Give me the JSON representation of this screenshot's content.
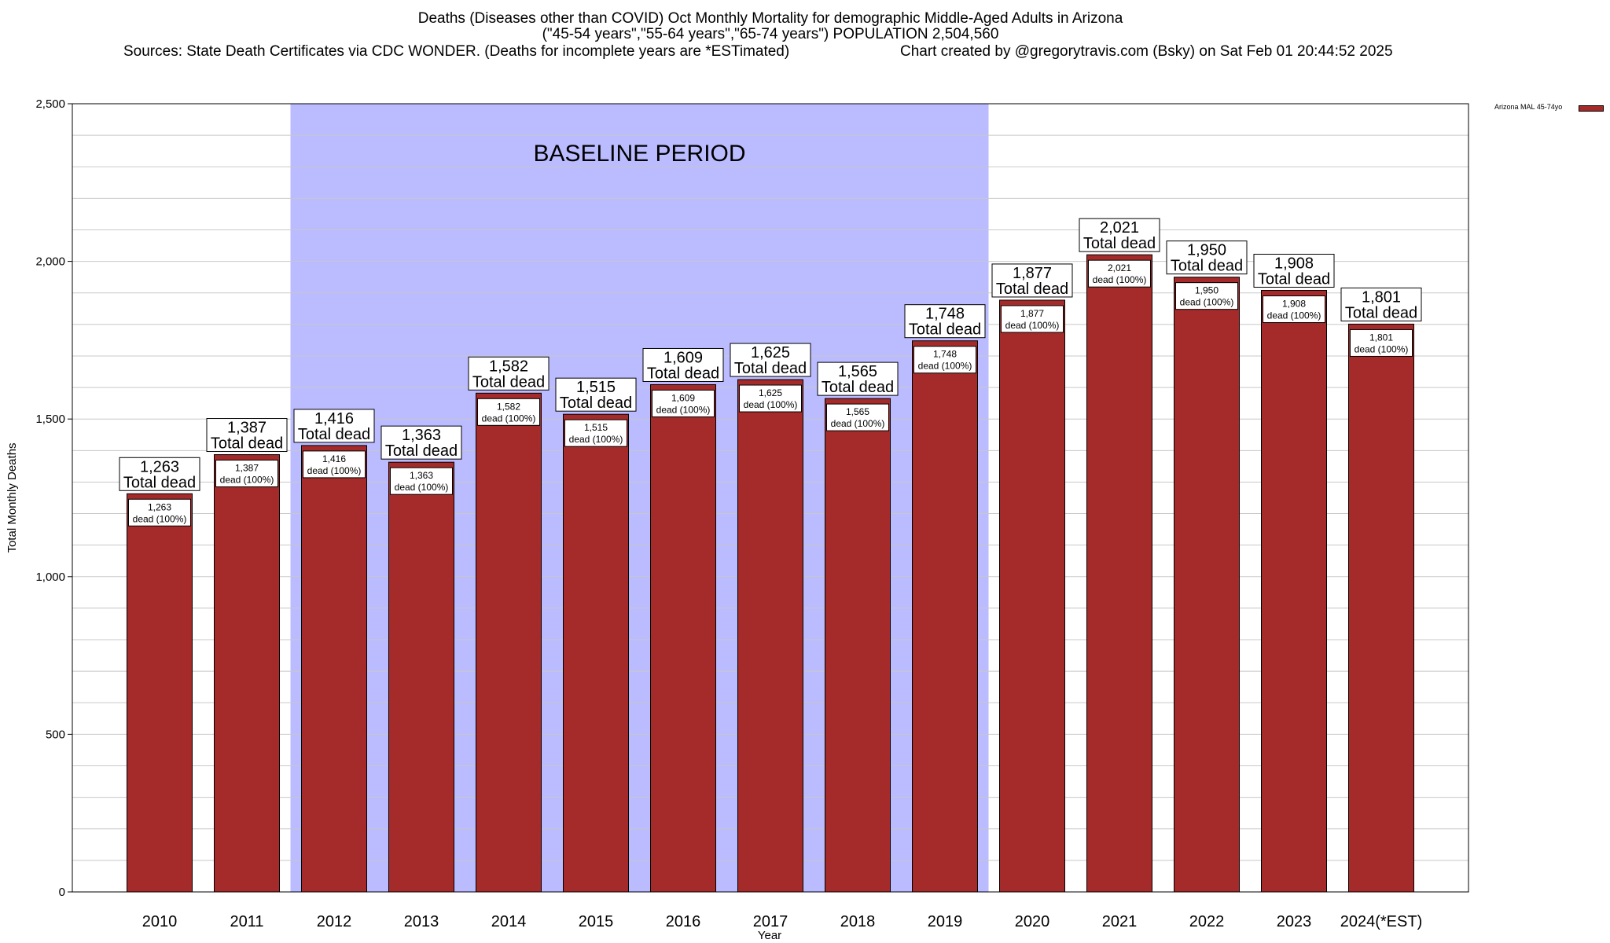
{
  "header": {
    "title_line1": "Deaths (Diseases other than COVID) Oct Monthly Mortality for demographic Middle-Aged Adults in Arizona",
    "title_line2": "(\"45-54 years\",\"55-64 years\",\"65-74 years\") POPULATION 2,504,560",
    "sources": "Sources: State Death Certificates via CDC WONDER. (Deaths for incomplete years are *ESTimated)",
    "credit": "Chart created by @gregorytravis.com (Bsky) on Sat Feb 01 20:44:52 2025"
  },
  "legend": {
    "label": "Arizona MAL 45-74yo",
    "color": "#a52a2a"
  },
  "chart_data": {
    "type": "bar",
    "title": "Deaths (Diseases other than COVID) Oct Monthly Mortality for demographic Middle-Aged Adults in Arizona",
    "xlabel": "Year",
    "ylabel": "Total Monthly Deaths",
    "ylim": [
      0,
      2500
    ],
    "yticks": [
      0,
      500,
      1000,
      1500,
      2000,
      2500
    ],
    "ytick_labels": [
      "0",
      "500",
      "1,000",
      "1,500",
      "2,000",
      "2,500"
    ],
    "grid": true,
    "legend_position": "top-right",
    "categories": [
      "2010",
      "2011",
      "2012",
      "2013",
      "2014",
      "2015",
      "2016",
      "2017",
      "2018",
      "2019",
      "2020",
      "2021",
      "2022",
      "2023",
      "2024(*EST)"
    ],
    "series": [
      {
        "name": "Arizona MAL 45-74yo",
        "color": "#a52a2a",
        "values": [
          1263,
          1387,
          1416,
          1363,
          1582,
          1515,
          1609,
          1625,
          1565,
          1748,
          1877,
          2021,
          1950,
          1908,
          1801
        ]
      }
    ],
    "data_labels": [
      "1,263",
      "1,387",
      "1,416",
      "1,363",
      "1,582",
      "1,515",
      "1,609",
      "1,625",
      "1,565",
      "1,748",
      "1,877",
      "2,021",
      "1,950",
      "1,908",
      "1,801"
    ],
    "total_label": "Total dead",
    "inner_label": "dead (100%)",
    "annotation": {
      "text": "BASELINE PERIOD",
      "start_category": "2012",
      "end_category": "2019",
      "color": "#bbbbff"
    }
  }
}
